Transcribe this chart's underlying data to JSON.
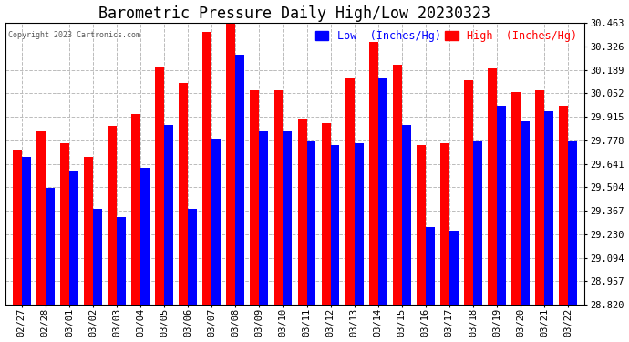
{
  "title": "Barometric Pressure Daily High/Low 20230323",
  "copyright": "Copyright 2023 Cartronics.com",
  "legend_low": "Low  (Inches/Hg)",
  "legend_high": "High  (Inches/Hg)",
  "dates": [
    "02/27",
    "02/28",
    "03/01",
    "03/02",
    "03/03",
    "03/04",
    "03/05",
    "03/06",
    "03/07",
    "03/08",
    "03/09",
    "03/10",
    "03/11",
    "03/12",
    "03/13",
    "03/14",
    "03/15",
    "03/16",
    "03/17",
    "03/18",
    "03/19",
    "03/20",
    "03/21",
    "03/22"
  ],
  "high": [
    29.72,
    29.83,
    29.76,
    29.68,
    29.86,
    29.93,
    30.21,
    30.11,
    30.41,
    30.46,
    30.07,
    30.07,
    29.9,
    29.88,
    30.14,
    30.35,
    30.22,
    29.75,
    29.76,
    30.13,
    30.2,
    30.06,
    30.07,
    29.98
  ],
  "low": [
    29.68,
    29.5,
    29.6,
    29.38,
    29.33,
    29.62,
    29.87,
    29.38,
    29.79,
    30.28,
    29.83,
    29.83,
    29.77,
    29.75,
    29.76,
    30.14,
    29.87,
    29.27,
    29.25,
    29.77,
    29.98,
    29.89,
    29.95,
    29.77
  ],
  "ylim_min": 28.82,
  "ylim_max": 30.463,
  "yticks": [
    28.82,
    28.957,
    29.094,
    29.23,
    29.367,
    29.504,
    29.641,
    29.778,
    29.915,
    30.052,
    30.189,
    30.326,
    30.463
  ],
  "bar_color_high": "#ff0000",
  "bar_color_low": "#0000ff",
  "bg_color": "#ffffff",
  "grid_color": "#bbbbbb",
  "title_fontsize": 12,
  "tick_fontsize": 7.5,
  "legend_fontsize": 8.5
}
